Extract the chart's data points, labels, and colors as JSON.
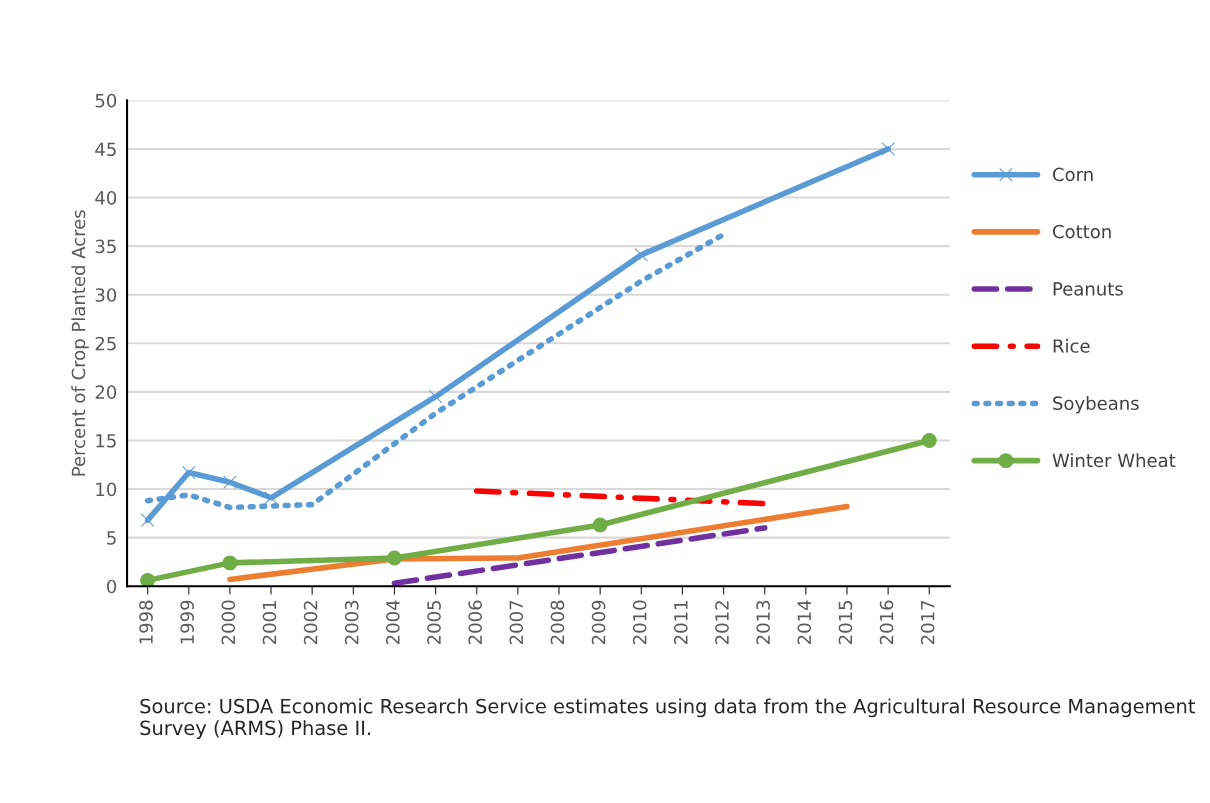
{
  "chart_data": {
    "type": "line",
    "ylabel": "Percent of Crop Planted Acres",
    "xlim": [
      1997.5,
      2017.5
    ],
    "xticks": [
      1998,
      1999,
      2000,
      2001,
      2002,
      2003,
      2004,
      2005,
      2006,
      2007,
      2008,
      2009,
      2010,
      2011,
      2012,
      2013,
      2014,
      2015,
      2016,
      2017
    ],
    "ylim": [
      0,
      50
    ],
    "yticks": [
      0,
      5,
      10,
      15,
      20,
      25,
      30,
      35,
      40,
      45,
      50
    ],
    "grid": "y",
    "legend": "right",
    "series": [
      {
        "name": "Corn",
        "color": "#5b9bd5",
        "marker": "cross",
        "line_style": "solid",
        "x": [
          1998,
          1999,
          2000,
          2001,
          2005,
          2010,
          2016
        ],
        "values": [
          6.8,
          11.7,
          10.7,
          9.1,
          19.5,
          34.1,
          45
        ]
      },
      {
        "name": "Cotton",
        "color": "#ed7d31",
        "marker": "none",
        "line_style": "solid",
        "x": [
          2000,
          2004,
          2007,
          2015
        ],
        "values": [
          0.7,
          2.8,
          2.9,
          8.2
        ]
      },
      {
        "name": "Peanuts",
        "color": "#7030a0",
        "marker": "none",
        "line_style": "dashed",
        "x": [
          2004,
          2013
        ],
        "values": [
          0.3,
          6.0
        ]
      },
      {
        "name": "Rice",
        "color": "#ff0000",
        "marker": "none",
        "line_style": "dashdot",
        "x": [
          2006,
          2013
        ],
        "values": [
          9.8,
          8.5
        ]
      },
      {
        "name": "Soybeans",
        "color": "#5b9bd5",
        "marker": "none",
        "line_style": "dotted",
        "x": [
          1998,
          1999,
          2000,
          2002,
          2005,
          2010,
          2012
        ],
        "values": [
          8.8,
          9.4,
          8.1,
          8.4,
          17.8,
          31.4,
          36.2
        ]
      },
      {
        "name": "Winter Wheat",
        "color": "#70ad47",
        "marker": "circle",
        "line_style": "solid",
        "x": [
          1998,
          2000,
          2004,
          2009,
          2017
        ],
        "values": [
          0.6,
          2.4,
          2.9,
          6.3,
          15.0
        ]
      }
    ],
    "annotations": [
      "Source: USDA Economic Research Service estimates using data from the Agricultural Resource Management Survey (ARMS) Phase II."
    ]
  }
}
